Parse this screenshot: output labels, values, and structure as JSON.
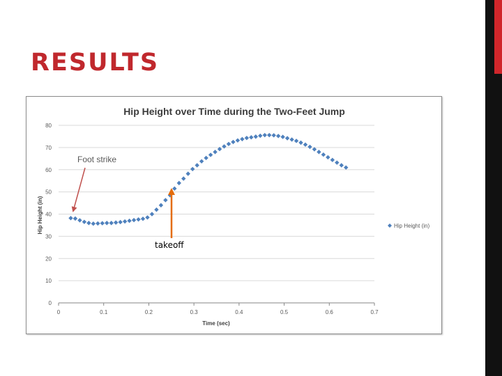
{
  "slide": {
    "title": "RESULTS"
  },
  "colors": {
    "title_red": "#c0282d",
    "accent_red": "#d0262b",
    "series_blue": "#4f81bd",
    "annotation_red": "#c0504d",
    "arrow_orange": "#e46c0a"
  },
  "chart_data": {
    "type": "scatter",
    "title": "Hip Height over Time during the Two-Feet Jump",
    "xlabel": "Time (sec)",
    "ylabel": "Hip Height (in)",
    "xlim": [
      0,
      0.7
    ],
    "ylim": [
      0,
      80
    ],
    "x_ticks": [
      "0",
      "0.1",
      "0.2",
      "0.3",
      "0.4",
      "0.5",
      "0.6",
      "0.7"
    ],
    "y_ticks": [
      "0",
      "10",
      "20",
      "30",
      "40",
      "50",
      "60",
      "70",
      "80"
    ],
    "grid": "horizontal",
    "legend_position": "right",
    "series": [
      {
        "name": "Hip Height (in)",
        "marker": "diamond",
        "points": [
          [
            0.027,
            38.2
          ],
          [
            0.037,
            38.0
          ],
          [
            0.047,
            37.2
          ],
          [
            0.057,
            36.5
          ],
          [
            0.067,
            36.0
          ],
          [
            0.077,
            35.7
          ],
          [
            0.087,
            35.8
          ],
          [
            0.097,
            35.9
          ],
          [
            0.107,
            36.0
          ],
          [
            0.117,
            36.0
          ],
          [
            0.127,
            36.2
          ],
          [
            0.137,
            36.4
          ],
          [
            0.147,
            36.7
          ],
          [
            0.157,
            37.0
          ],
          [
            0.167,
            37.3
          ],
          [
            0.177,
            37.6
          ],
          [
            0.187,
            37.9
          ],
          [
            0.197,
            38.5
          ],
          [
            0.207,
            40.0
          ],
          [
            0.217,
            42.0
          ],
          [
            0.227,
            44.0
          ],
          [
            0.237,
            46.3
          ],
          [
            0.247,
            48.5
          ],
          [
            0.257,
            51.5
          ],
          [
            0.267,
            54.0
          ],
          [
            0.277,
            56.0
          ],
          [
            0.287,
            58.2
          ],
          [
            0.297,
            60.3
          ],
          [
            0.307,
            62.0
          ],
          [
            0.317,
            63.8
          ],
          [
            0.327,
            65.3
          ],
          [
            0.337,
            66.7
          ],
          [
            0.347,
            68.0
          ],
          [
            0.357,
            69.3
          ],
          [
            0.367,
            70.5
          ],
          [
            0.377,
            71.6
          ],
          [
            0.387,
            72.5
          ],
          [
            0.397,
            73.2
          ],
          [
            0.407,
            73.8
          ],
          [
            0.417,
            74.3
          ],
          [
            0.427,
            74.6
          ],
          [
            0.437,
            74.9
          ],
          [
            0.447,
            75.3
          ],
          [
            0.457,
            75.6
          ],
          [
            0.467,
            75.6
          ],
          [
            0.477,
            75.5
          ],
          [
            0.487,
            75.2
          ],
          [
            0.497,
            74.8
          ],
          [
            0.507,
            74.2
          ],
          [
            0.517,
            73.6
          ],
          [
            0.527,
            73.0
          ],
          [
            0.537,
            72.2
          ],
          [
            0.547,
            71.3
          ],
          [
            0.557,
            70.3
          ],
          [
            0.567,
            69.2
          ],
          [
            0.577,
            68.0
          ],
          [
            0.587,
            66.8
          ],
          [
            0.597,
            65.6
          ],
          [
            0.607,
            64.4
          ],
          [
            0.617,
            63.2
          ],
          [
            0.627,
            62.0
          ],
          [
            0.637,
            61.0
          ]
        ]
      }
    ],
    "annotations": [
      {
        "text": "Foot strike",
        "x": 0.03,
        "y": 38.2
      },
      {
        "text": "takeoff",
        "x": 0.25,
        "y": 51.5
      }
    ]
  }
}
